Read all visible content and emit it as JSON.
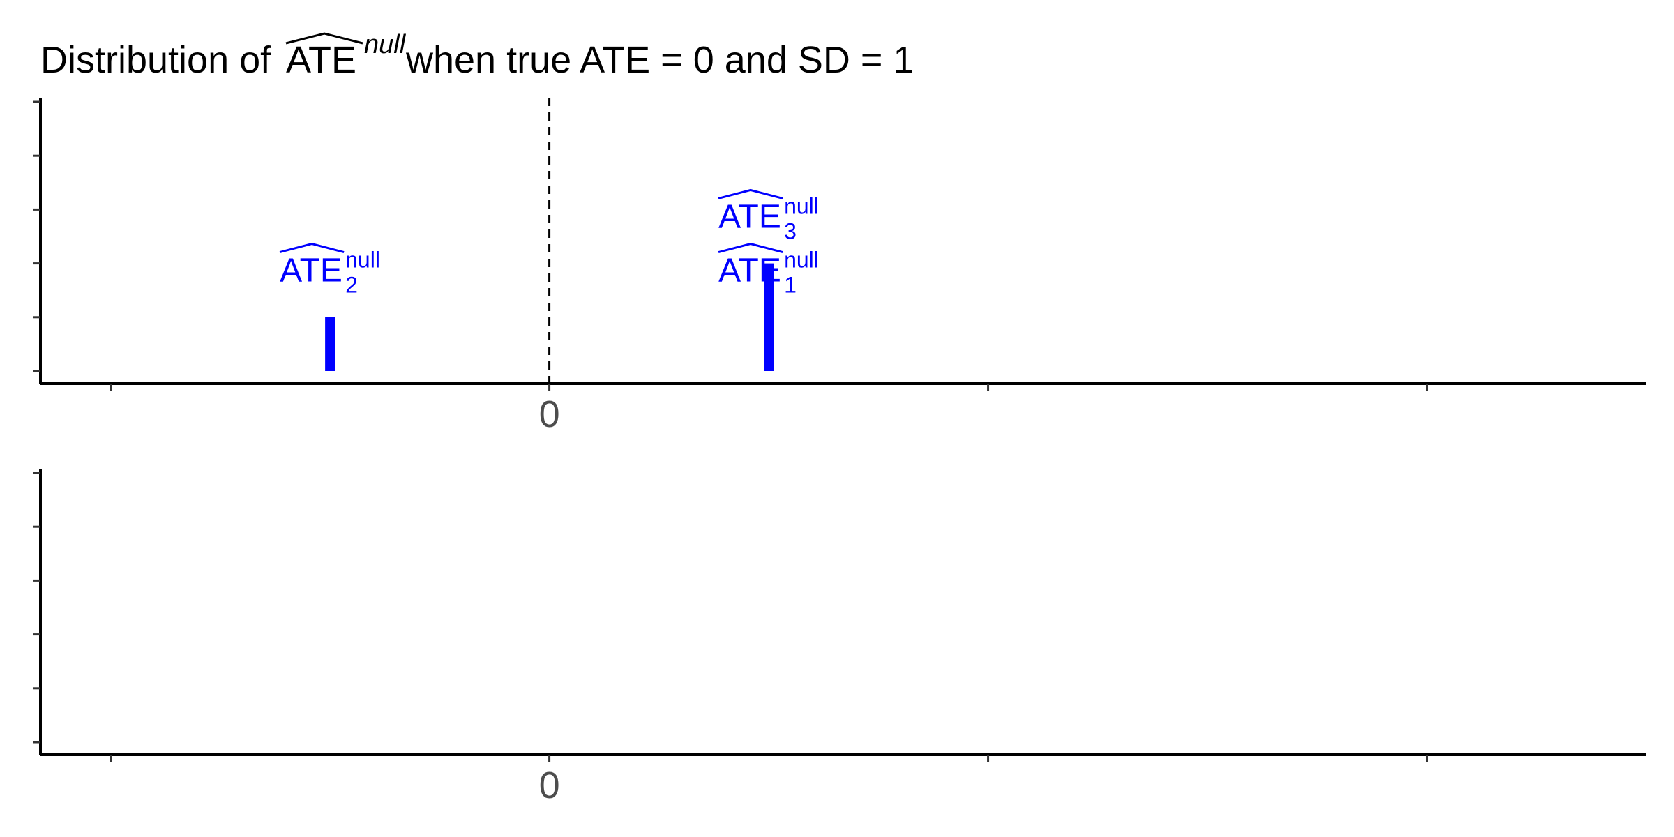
{
  "title": {
    "prefix": "Distribution of ",
    "estimator": "ATE",
    "estimator_superscript": "null",
    "suffix": " when true ATE = 0 and SD = 1"
  },
  "colors": {
    "marks": "#0000ff",
    "axis": "#000000",
    "tick_label": "#4d4d4d",
    "reference_line": "#000000"
  },
  "chart_data": [
    {
      "type": "bar",
      "panel": "top",
      "xlabel": "",
      "ylabel": "",
      "x_tick_labels": [
        "",
        "0",
        "",
        ""
      ],
      "x_ticks": [
        -1,
        0,
        1,
        2
      ],
      "xlim": [
        -1.16,
        2.5
      ],
      "ylim": [
        0,
        5.3
      ],
      "y_ticks": [
        0,
        1,
        2,
        3,
        4,
        5
      ],
      "y_tick_labels": [
        "",
        "",
        "",
        "",
        "",
        ""
      ],
      "reference_line": {
        "x": 0,
        "style": "dashed"
      },
      "bars": [
        {
          "x": -0.5,
          "count": 1
        },
        {
          "x": 0.5,
          "count": 2
        }
      ],
      "annotations": [
        {
          "text": "ATE",
          "subscript": "2",
          "superscript": "null",
          "x": -0.5,
          "level": 2
        },
        {
          "text": "ATE",
          "subscript": "1",
          "superscript": "null",
          "x": 0.5,
          "level": 2
        },
        {
          "text": "ATE",
          "subscript": "3",
          "superscript": "null",
          "x": 0.5,
          "level": 3
        }
      ],
      "grid": false,
      "legend": "none"
    },
    {
      "type": "bar",
      "panel": "bottom",
      "xlabel": "",
      "ylabel": "",
      "x_tick_labels": [
        "",
        "0",
        "",
        ""
      ],
      "x_ticks": [
        -1,
        0,
        1,
        2
      ],
      "xlim": [
        -1.16,
        2.5
      ],
      "ylim": [
        0,
        5.3
      ],
      "y_ticks": [
        0,
        1,
        2,
        3,
        4,
        5
      ],
      "y_tick_labels": [
        "",
        "",
        "",
        "",
        "",
        ""
      ],
      "bars": [],
      "annotations": [],
      "grid": false,
      "legend": "none"
    }
  ]
}
